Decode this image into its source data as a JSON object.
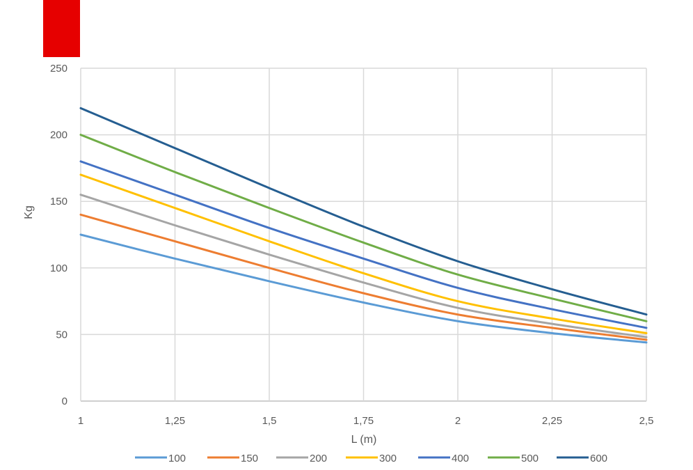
{
  "chart_data": {
    "type": "line",
    "title": "",
    "xlabel": "L (m)",
    "ylabel": "Kg",
    "xlim": [
      1,
      2.5
    ],
    "ylim": [
      0,
      250
    ],
    "grid": true,
    "legend_position": "bottom",
    "x": [
      1,
      1.25,
      1.5,
      1.75,
      2,
      2.25,
      2.5
    ],
    "x_tick_labels": [
      "1",
      "1,25",
      "1,5",
      "1,75",
      "2",
      "2,25",
      "2,5"
    ],
    "y_ticks": [
      0,
      50,
      100,
      150,
      200,
      250
    ],
    "y_tick_labels": [
      "0",
      "50",
      "100",
      "150",
      "200",
      "250"
    ],
    "series": [
      {
        "name": "100",
        "color": "#5b9bd5",
        "values": [
          125,
          107,
          90,
          74,
          60,
          51,
          44
        ]
      },
      {
        "name": "150",
        "color": "#ed7d31",
        "values": [
          140,
          120,
          100,
          81,
          65,
          55,
          46
        ]
      },
      {
        "name": "200",
        "color": "#a5a5a5",
        "values": [
          155,
          132,
          110,
          89,
          70,
          58,
          48
        ]
      },
      {
        "name": "300",
        "color": "#ffc000",
        "values": [
          170,
          145,
          120,
          96,
          75,
          62,
          51
        ]
      },
      {
        "name": "400",
        "color": "#4472c4",
        "values": [
          180,
          155,
          130,
          107,
          85,
          69,
          55
        ]
      },
      {
        "name": "500",
        "color": "#70ad47",
        "values": [
          200,
          172,
          145,
          119,
          95,
          77,
          60
        ]
      },
      {
        "name": "600",
        "color": "#255e91",
        "values": [
          220,
          190,
          160,
          131,
          105,
          84,
          65
        ]
      }
    ]
  },
  "decor": {
    "accent_color": "#e60000"
  }
}
